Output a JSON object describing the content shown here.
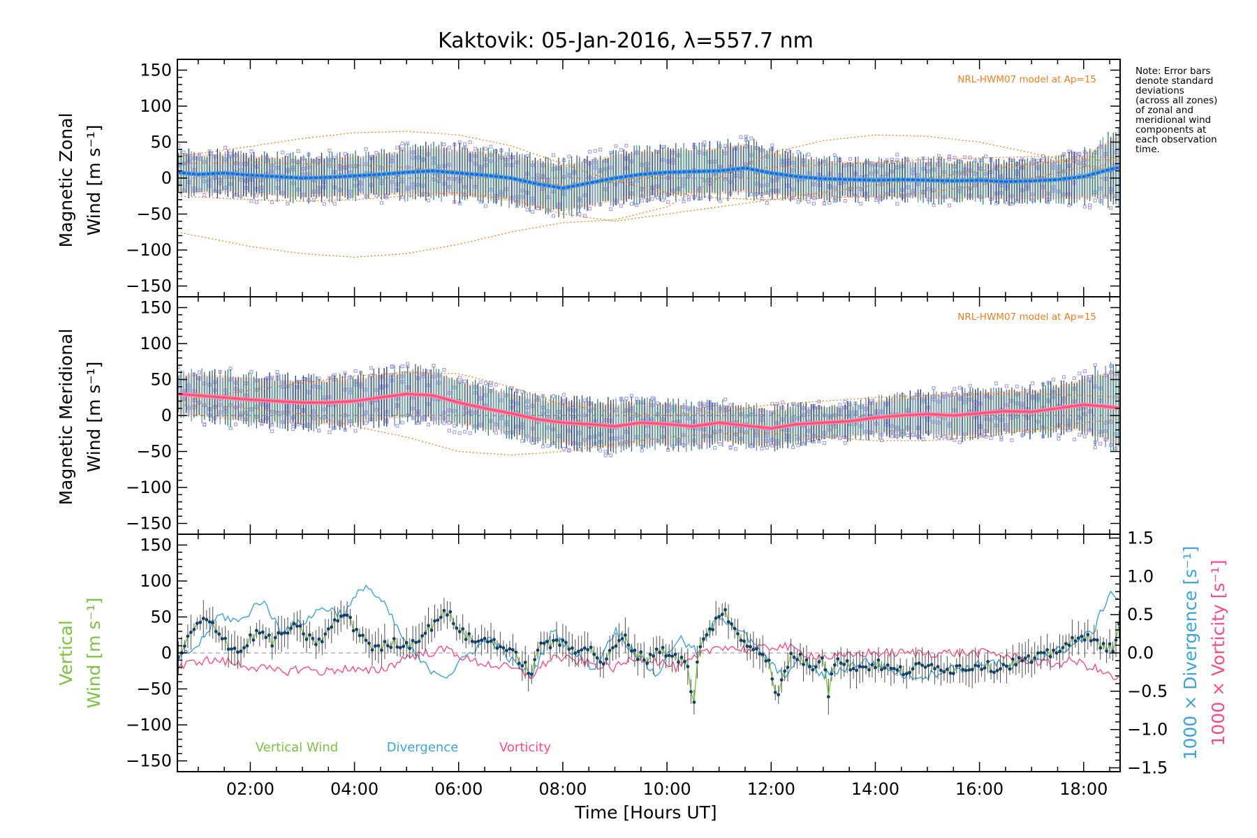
{
  "colors": {
    "zonal_mean": "#1f5fe0",
    "zonal_mean_light": "#4aa3d8",
    "meridional_mean": "#ff4f7b",
    "model": "#f07e22",
    "scatter": "#a8a4e6",
    "vertical": "#7cc142",
    "divergence": "#3ea3d8",
    "vorticity": "#ff4d86",
    "point": "#12406b",
    "errbar": "#4d4d4d",
    "band_orange": "#f5b89a",
    "band_cyan": "#b8eef0"
  },
  "chart_data": {
    "type": "line",
    "title": "Kaktovik: 05-Jan-2016, λ=557.7 nm",
    "note": [
      "Note: Error bars",
      "denote standard",
      "deviations",
      "(across all zones)",
      "of zonal and",
      "meridional wind",
      "components at",
      "each observation",
      "time."
    ],
    "x": {
      "label": "Time [Hours UT]",
      "range": [
        0.6,
        18.7
      ],
      "ticks": [
        2,
        4,
        6,
        8,
        10,
        12,
        14,
        16,
        18
      ],
      "tick_labels": [
        "02:00",
        "04:00",
        "06:00",
        "08:00",
        "10:00",
        "12:00",
        "14:00",
        "16:00",
        "18:00"
      ]
    },
    "y_ticks": [
      150,
      100,
      50,
      0,
      -50,
      -100,
      -150
    ],
    "y_tick_labels": [
      "150",
      "100",
      "50",
      "0",
      "−50",
      "−100",
      "−150"
    ],
    "panels": [
      {
        "id": "zonal",
        "ylabel": [
          "Magnetic Zonal",
          "Wind [m s⁻¹]"
        ],
        "ylim": [
          -165,
          165
        ],
        "model_label": "NRL-HWM07 model at Ap=15",
        "mean": {
          "t": [
            0.6,
            1.0,
            1.5,
            2.0,
            2.5,
            3.0,
            3.5,
            4.0,
            4.5,
            5.0,
            5.5,
            6.0,
            6.5,
            7.0,
            7.5,
            8.0,
            8.5,
            9.0,
            9.5,
            10.0,
            10.5,
            11.0,
            11.5,
            12.0,
            12.5,
            13.0,
            13.5,
            14.0,
            14.5,
            15.0,
            15.5,
            16.0,
            16.5,
            17.0,
            17.5,
            18.0,
            18.5,
            18.7
          ],
          "v": [
            8,
            5,
            7,
            4,
            2,
            0,
            1,
            3,
            5,
            8,
            10,
            7,
            4,
            0,
            -8,
            -14,
            -7,
            0,
            5,
            8,
            9,
            10,
            14,
            7,
            2,
            -1,
            -2,
            -3,
            -2,
            -3,
            -4,
            -3,
            -5,
            -4,
            -2,
            2,
            12,
            15
          ]
        },
        "spread_sd": [
          30,
          30,
          30,
          30,
          30,
          30,
          30,
          30,
          32,
          34,
          35,
          36,
          36,
          36,
          35,
          36,
          36,
          36,
          35,
          34,
          34,
          36,
          38,
          34,
          30,
          28,
          28,
          28,
          28,
          28,
          28,
          28,
          28,
          28,
          30,
          34,
          45,
          50
        ],
        "model_curves": [
          {
            "t": [
              0.6,
              2,
              3,
              4,
              5,
              6,
              7,
              8,
              9,
              10,
              11,
              12,
              13,
              14,
              15,
              16,
              17,
              18,
              18.7
            ],
            "v": [
              30,
              44,
              55,
              63,
              65,
              60,
              45,
              20,
              -5,
              -20,
              -28,
              -30,
              -28,
              -25,
              -20,
              -10,
              0,
              15,
              20
            ]
          },
          {
            "t": [
              0.6,
              2,
              3,
              4,
              5,
              6,
              7,
              8,
              9,
              10,
              11,
              12,
              13,
              14,
              15,
              16,
              17,
              18,
              18.7
            ],
            "v": [
              -75,
              -95,
              -105,
              -110,
              -105,
              -92,
              -75,
              -62,
              -58,
              -40,
              0,
              35,
              52,
              60,
              58,
              50,
              35,
              18,
              10
            ]
          },
          {
            "t": [
              0.6,
              2,
              3,
              4,
              5,
              6,
              7,
              8,
              9,
              10,
              11,
              12,
              13,
              14,
              15,
              16,
              17,
              18,
              18.7
            ],
            "v": [
              -25,
              -30,
              -32,
              -30,
              -25,
              -20,
              -30,
              -50,
              -60,
              -50,
              -40,
              -30,
              -20,
              -10,
              0,
              10,
              20,
              25,
              25
            ]
          },
          {
            "t": [
              0.6,
              2,
              3,
              4,
              5,
              6,
              7,
              8,
              9,
              10,
              11,
              12,
              13,
              14,
              15,
              16,
              17,
              18,
              18.7
            ],
            "v": [
              20,
              22,
              20,
              18,
              15,
              10,
              0,
              -10,
              -5,
              5,
              10,
              15,
              18,
              22,
              26,
              28,
              30,
              30,
              28
            ]
          }
        ]
      },
      {
        "id": "meridional",
        "ylabel": [
          "Magnetic Meridional",
          "Wind [m s⁻¹]"
        ],
        "ylim": [
          -165,
          165
        ],
        "model_label": "NRL-HWM07 model at Ap=15",
        "mean": {
          "t": [
            0.6,
            1.0,
            1.5,
            2.0,
            2.5,
            3.0,
            3.5,
            4.0,
            4.5,
            5.0,
            5.5,
            6.0,
            6.5,
            7.0,
            7.5,
            8.0,
            8.5,
            9.0,
            9.5,
            10.0,
            10.5,
            11.0,
            11.5,
            12.0,
            12.5,
            13.0,
            13.5,
            14.0,
            14.5,
            15.0,
            15.5,
            16.0,
            16.5,
            17.0,
            17.5,
            18.0,
            18.5,
            18.7
          ],
          "v": [
            30,
            28,
            25,
            22,
            20,
            18,
            18,
            20,
            25,
            30,
            28,
            18,
            10,
            3,
            -5,
            -10,
            -12,
            -15,
            -10,
            -12,
            -15,
            -10,
            -14,
            -18,
            -12,
            -10,
            -8,
            -3,
            0,
            2,
            0,
            3,
            6,
            5,
            10,
            15,
            12,
            10
          ]
        },
        "spread_sd": [
          30,
          32,
          34,
          34,
          34,
          34,
          34,
          34,
          35,
          36,
          36,
          34,
          32,
          30,
          30,
          32,
          34,
          34,
          32,
          32,
          30,
          28,
          28,
          28,
          26,
          24,
          24,
          26,
          28,
          30,
          32,
          32,
          32,
          32,
          34,
          40,
          55,
          60
        ],
        "model_curves": [
          {
            "t": [
              0.6,
              2,
              3,
              4,
              5,
              6,
              7,
              8,
              9,
              10,
              11,
              12,
              13,
              14,
              15,
              16,
              17,
              18,
              18.7
            ],
            "v": [
              15,
              10,
              2,
              -15,
              -30,
              -50,
              -55,
              -50,
              -40,
              -30,
              -25,
              -25,
              -30,
              -35,
              -35,
              -30,
              -20,
              -10,
              -5
            ]
          },
          {
            "t": [
              0.6,
              2,
              3,
              4,
              5,
              6,
              7,
              8,
              9,
              10,
              11,
              12,
              13,
              14,
              15,
              16,
              17,
              18,
              18.7
            ],
            "v": [
              20,
              35,
              45,
              55,
              60,
              58,
              40,
              15,
              5,
              0,
              5,
              15,
              20,
              25,
              28,
              30,
              30,
              28,
              25
            ]
          },
          {
            "t": [
              0.6,
              2,
              3,
              4,
              5,
              6,
              7,
              8,
              9,
              10,
              11,
              12,
              13,
              14,
              15,
              16,
              17,
              18,
              18.7
            ],
            "v": [
              0,
              0,
              0,
              0,
              0,
              0,
              0,
              0,
              0,
              0,
              0,
              0,
              0,
              0,
              0,
              0,
              0,
              0,
              0
            ]
          }
        ]
      },
      {
        "id": "vertical",
        "ylabel_left": [
          "Vertical",
          "Wind [m s⁻¹]"
        ],
        "ylabel_right1": "1000 × Divergence [s⁻¹]",
        "ylabel_right2": "1000 × Vorticity [s⁻¹]",
        "ylim": [
          -165,
          165
        ],
        "y2_range": [
          -1.55,
          1.55
        ],
        "y2_ticks": [
          1.5,
          1.0,
          0.5,
          0.0,
          -0.5,
          -1.0,
          -1.5
        ],
        "y2_tick_labels": [
          "1.5",
          "1.0",
          "0.5",
          "0.0",
          "−0.5",
          "−1.0",
          "−1.5"
        ],
        "legend": [
          "Vertical Wind",
          "Divergence",
          "Vorticity"
        ],
        "vertical_wind": {
          "t": [
            0.6,
            0.8,
            1.0,
            1.2,
            1.4,
            1.6,
            1.8,
            2.0,
            2.2,
            2.4,
            2.6,
            2.8,
            3.0,
            3.2,
            3.4,
            3.6,
            3.8,
            4.0,
            4.2,
            4.4,
            4.6,
            4.8,
            5.0,
            5.2,
            5.4,
            5.6,
            5.8,
            6.0,
            6.2,
            6.4,
            6.6,
            6.8,
            7.0,
            7.2,
            7.4,
            7.6,
            7.8,
            8.0,
            8.2,
            8.4,
            8.6,
            8.8,
            9.0,
            9.2,
            9.4,
            9.6,
            9.8,
            10.0,
            10.2,
            10.4,
            10.5,
            10.6,
            10.8,
            11.0,
            11.1,
            11.2,
            11.4,
            11.6,
            11.8,
            12.0,
            12.1,
            12.2,
            12.4,
            12.6,
            12.8,
            13.0,
            13.1,
            13.2,
            13.4,
            13.6,
            13.8,
            14.0,
            14.2,
            14.4,
            14.6,
            14.8,
            15.0,
            15.2,
            15.4,
            15.6,
            15.8,
            16.0,
            16.2,
            16.4,
            16.6,
            16.8,
            17.0,
            17.2,
            17.4,
            17.6,
            17.8,
            18.0,
            18.2,
            18.4,
            18.6,
            18.7
          ],
          "v": [
            -15,
            20,
            40,
            45,
            30,
            10,
            0,
            20,
            30,
            15,
            25,
            35,
            30,
            15,
            20,
            40,
            55,
            35,
            20,
            5,
            10,
            15,
            10,
            20,
            30,
            50,
            55,
            35,
            20,
            15,
            20,
            10,
            0,
            -10,
            -30,
            20,
            10,
            15,
            5,
            10,
            0,
            -15,
            10,
            20,
            0,
            -10,
            5,
            0,
            -5,
            -20,
            -80,
            0,
            30,
            50,
            65,
            40,
            20,
            10,
            5,
            -20,
            -70,
            -40,
            0,
            -10,
            -20,
            0,
            -55,
            -10,
            -15,
            -20,
            -20,
            -15,
            -20,
            -25,
            -25,
            -20,
            -20,
            -15,
            -25,
            -20,
            -20,
            -15,
            -20,
            -20,
            -15,
            -10,
            -10,
            -5,
            0,
            10,
            15,
            20,
            25,
            5,
            10,
            40
          ]
        },
        "divergence": {
          "t": [
            0.6,
            1.0,
            1.4,
            1.8,
            2.2,
            2.6,
            3.0,
            3.4,
            3.8,
            4.2,
            4.6,
            5.0,
            5.4,
            5.8,
            6.2,
            6.6,
            7.0,
            7.4,
            7.8,
            8.2,
            8.6,
            9.0,
            9.4,
            9.8,
            10.2,
            10.6,
            11.0,
            11.4,
            11.8,
            12.2,
            12.6,
            13.0,
            13.4,
            13.8,
            14.2,
            14.6,
            15.0,
            15.4,
            15.8,
            16.2,
            16.6,
            17.0,
            17.4,
            17.8,
            18.2,
            18.5,
            18.7
          ],
          "v": [
            -0.1,
            0.1,
            0.5,
            0.4,
            0.7,
            0.3,
            0.4,
            0.6,
            0.5,
            0.9,
            0.6,
            0.1,
            -0.2,
            -0.3,
            0.0,
            0.2,
            -0.1,
            -0.3,
            0.3,
            0.0,
            -0.2,
            0.3,
            0.0,
            -0.3,
            0.2,
            0.0,
            0.5,
            0.3,
            0.0,
            -0.3,
            -0.1,
            -0.3,
            -0.2,
            -0.1,
            -0.2,
            -0.3,
            -0.3,
            -0.2,
            -0.2,
            -0.1,
            -0.2,
            -0.1,
            0.0,
            0.1,
            0.3,
            0.8,
            0.7
          ]
        },
        "vorticity": {
          "t": [
            0.6,
            1.0,
            1.4,
            1.8,
            2.2,
            2.6,
            3.0,
            3.4,
            3.8,
            4.2,
            4.6,
            5.0,
            5.4,
            5.8,
            6.2,
            6.6,
            7.0,
            7.4,
            7.8,
            8.2,
            8.6,
            9.0,
            9.4,
            9.8,
            10.2,
            10.6,
            11.0,
            11.4,
            11.8,
            12.2,
            12.6,
            13.0,
            13.4,
            13.8,
            14.2,
            14.6,
            15.0,
            15.4,
            15.8,
            16.2,
            16.6,
            17.0,
            17.4,
            17.8,
            18.2,
            18.5,
            18.7
          ],
          "v": [
            -0.2,
            -0.1,
            -0.1,
            -0.15,
            -0.2,
            -0.25,
            -0.2,
            -0.25,
            -0.2,
            -0.25,
            -0.2,
            -0.05,
            0.0,
            0.05,
            -0.1,
            -0.15,
            -0.2,
            -0.3,
            -0.05,
            -0.1,
            -0.15,
            -0.2,
            -0.05,
            -0.1,
            -0.2,
            -0.05,
            0.1,
            0.05,
            0.05,
            0.1,
            0.0,
            -0.05,
            -0.05,
            0.0,
            0.0,
            0.0,
            0.0,
            0.0,
            0.0,
            0.0,
            -0.05,
            -0.1,
            -0.15,
            -0.1,
            -0.2,
            -0.3,
            -0.35
          ]
        }
      }
    ]
  }
}
